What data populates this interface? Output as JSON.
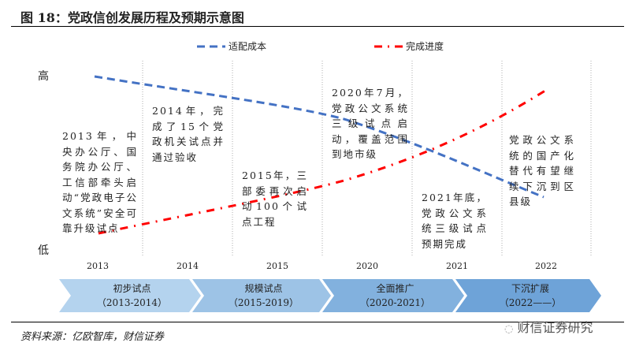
{
  "title": "图 18：党政信创发展历程及预期示意图",
  "legend": [
    {
      "name": "适配成本",
      "color": "#4472c4",
      "style": "dashed"
    },
    {
      "name": "完成进度",
      "color": "#ff0000",
      "style": "dash-dot"
    }
  ],
  "axis": {
    "high": "高",
    "low": "低"
  },
  "chart_data": {
    "type": "line",
    "categories": [
      "2013",
      "2014",
      "2015",
      "2020",
      "2021",
      "2022"
    ],
    "series": [
      {
        "name": "适配成本",
        "trend": "decreasing from high to low"
      },
      {
        "name": "完成进度",
        "trend": "increasing from low to high"
      }
    ],
    "grid": "vertical dotted",
    "legend": "top"
  },
  "notes": [
    "2013年，中央办公厅、国务院办公厅、工信部牵头启动“党政电子公文系统”安全可靠升级试点",
    "2014年，完成了15个党政机关试点并通过验收",
    "2015年，三部委再次启动100个试点工程",
    "2020年7月，党政公文系统三级试点启动，覆盖范围到地市级",
    "2021年底，党政公文系统三级试点预期完成",
    "党政公文系统的国产化替代有望继续下沉到区县级"
  ],
  "stages": [
    {
      "name": "初步试点",
      "period": "（2013-2014）",
      "color": "#b4d3ee"
    },
    {
      "name": "规模试点",
      "period": "（2015-2019）",
      "color": "#9dc3e6"
    },
    {
      "name": "全面推广",
      "period": "（2020-2021）",
      "color": "#82b1de"
    },
    {
      "name": "下沉扩展",
      "period": "（2022——）",
      "color": "#6ea3d8"
    }
  ],
  "source": "资料来源：亿欧智库，财信证券",
  "watermark": "财信证券研究"
}
